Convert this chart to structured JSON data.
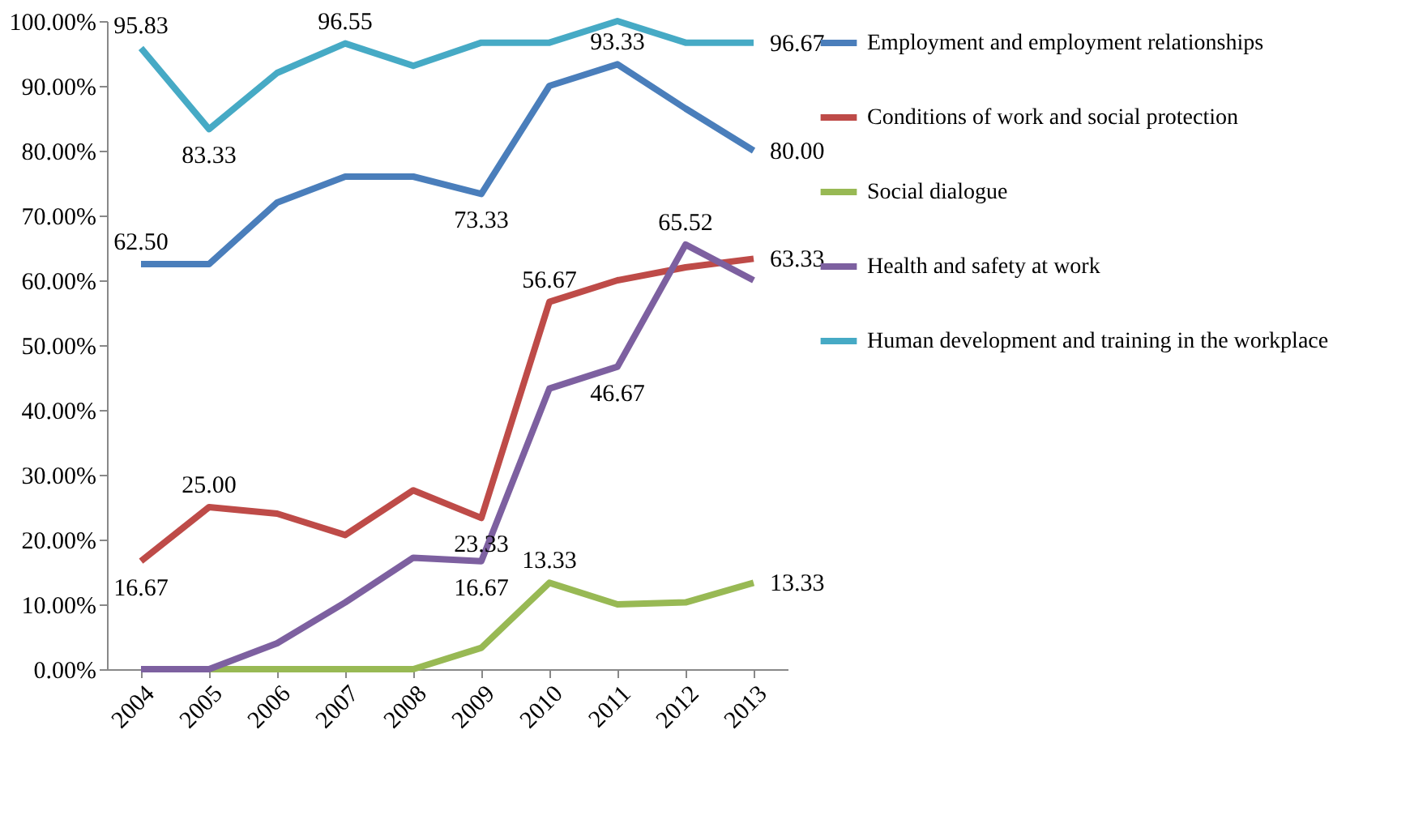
{
  "chart_data": {
    "type": "line",
    "categories": [
      "2004",
      "2005",
      "2006",
      "2007",
      "2008",
      "2009",
      "2010",
      "2011",
      "2012",
      "2013"
    ],
    "series": [
      {
        "name": "Employment and employment relationships",
        "color": "#4a7ebb",
        "values": [
          62.5,
          62.5,
          72,
          76,
          76,
          73.33,
          90,
          93.33,
          86.5,
          80.0
        ],
        "value_labels": [
          "62.50",
          null,
          null,
          null,
          null,
          "73.33",
          null,
          "93.33",
          null,
          "80.00"
        ]
      },
      {
        "name": "Conditions of work and social protection",
        "color": "#be4b48",
        "values": [
          16.67,
          25.0,
          24,
          20.7,
          27.6,
          23.33,
          56.67,
          60,
          62,
          63.33
        ],
        "value_labels": [
          "16.67",
          "25.00",
          null,
          null,
          null,
          "23.33",
          "56.67",
          null,
          null,
          "63.33"
        ]
      },
      {
        "name": "Social dialogue",
        "color": "#98b954",
        "values": [
          null,
          0,
          0,
          0,
          0,
          3.3,
          13.33,
          10,
          10.3,
          13.33
        ],
        "value_labels": [
          null,
          null,
          null,
          null,
          null,
          null,
          "13.33",
          null,
          null,
          "13.33"
        ]
      },
      {
        "name": "Health and safety at work",
        "color": "#7d60a0",
        "values": [
          0,
          0,
          4,
          10.3,
          17.2,
          16.67,
          43.3,
          46.67,
          65.52,
          60
        ],
        "value_labels": [
          null,
          null,
          null,
          null,
          null,
          "16.67",
          null,
          "46.67",
          "65.52",
          null
        ]
      },
      {
        "name": "Human development and training in the workplace",
        "color": "#46aac5",
        "values": [
          95.83,
          83.33,
          92,
          96.55,
          93.1,
          96.67,
          96.67,
          100,
          96.67,
          96.67
        ],
        "value_labels": [
          "95.83",
          "83.33",
          null,
          "96.55",
          null,
          null,
          null,
          null,
          null,
          "96.67"
        ]
      }
    ],
    "ylim": [
      0,
      100
    ],
    "yticks": [
      {
        "value": 0,
        "label": "0.00%"
      },
      {
        "value": 10,
        "label": "10.00%"
      },
      {
        "value": 20,
        "label": "20.00%"
      },
      {
        "value": 30,
        "label": "30.00%"
      },
      {
        "value": 40,
        "label": "40.00%"
      },
      {
        "value": 50,
        "label": "50.00%"
      },
      {
        "value": 60,
        "label": "60.00%"
      },
      {
        "value": 70,
        "label": "70.00%"
      },
      {
        "value": 80,
        "label": "80.00%"
      },
      {
        "value": 90,
        "label": "90.00%"
      },
      {
        "value": 100,
        "label": "100.00%"
      }
    ],
    "legend": "right",
    "grid": false,
    "marker": "none",
    "line_style": "solid"
  }
}
